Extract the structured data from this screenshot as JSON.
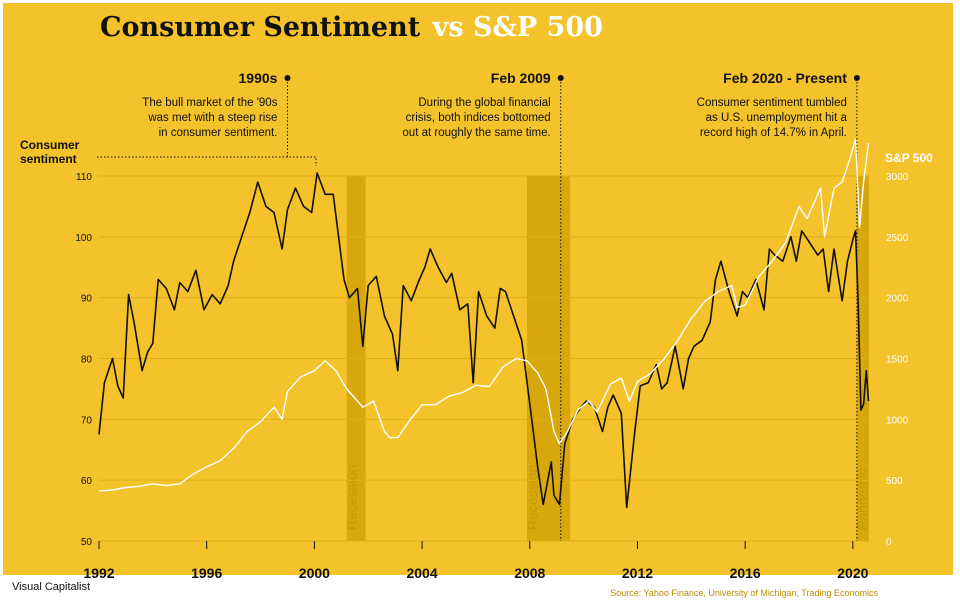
{
  "title": {
    "main": "Consumer Sentiment",
    "accent": "vs S&P 500"
  },
  "credit": "Visual Capitalist",
  "chart_data": {
    "type": "line",
    "colors": {
      "background": "#f4c22b",
      "sentiment": "#111111",
      "sp500": "#ffffff",
      "band": "#d8a70c",
      "band_text": "#c49c00"
    },
    "x_axis": {
      "min": 1992,
      "max": 2020.6,
      "ticks": [
        1992,
        1996,
        2000,
        2004,
        2008,
        2012,
        2016,
        2020
      ]
    },
    "y_left": {
      "label": "Consumer sentiment",
      "min": 50,
      "max": 110,
      "ticks": [
        50,
        60,
        70,
        80,
        90,
        100,
        110
      ]
    },
    "y_right": {
      "label": "S&P 500",
      "min": 0,
      "max": 3000,
      "ticks": [
        0,
        500,
        1000,
        1500,
        2000,
        2500,
        3000
      ]
    },
    "bands": [
      {
        "label": "Recession",
        "start": 2001.2,
        "end": 2001.9
      },
      {
        "label": "Recession",
        "start": 2007.9,
        "end": 2009.5
      },
      {
        "label": "Pandemic",
        "start": 2020.15,
        "end": 2020.5
      }
    ],
    "annotations": [
      {
        "heading": "1990s",
        "lines": [
          "The bull market of the '90s",
          "was met with a steep rise",
          "in consumer sentiment."
        ],
        "marker_x": 1999.0
      },
      {
        "heading": "Feb 2009",
        "lines": [
          "During the global financial",
          "crisis, both indices bottomed",
          "out at roughly the same time."
        ],
        "marker_x": 2009.15
      },
      {
        "heading": "Feb 2020 - Present",
        "lines": [
          "Consumer sentiment tumbled",
          "as U.S. unemployment hit a",
          "record high of 14.7% in April."
        ],
        "marker_x": 2020.15
      }
    ],
    "series": [
      {
        "name": "Consumer sentiment",
        "axis": "left",
        "points": [
          [
            1992.0,
            67.5
          ],
          [
            1992.2,
            76.0
          ],
          [
            1992.5,
            80.0
          ],
          [
            1992.7,
            75.5
          ],
          [
            1992.9,
            73.5
          ],
          [
            1993.1,
            90.5
          ],
          [
            1993.3,
            86.0
          ],
          [
            1993.6,
            78.0
          ],
          [
            1993.8,
            81.0
          ],
          [
            1994.0,
            82.5
          ],
          [
            1994.2,
            93.0
          ],
          [
            1994.5,
            91.5
          ],
          [
            1994.8,
            88.0
          ],
          [
            1995.0,
            92.5
          ],
          [
            1995.3,
            91.0
          ],
          [
            1995.6,
            94.5
          ],
          [
            1995.9,
            88.0
          ],
          [
            1996.2,
            90.5
          ],
          [
            1996.5,
            89.0
          ],
          [
            1996.8,
            92.0
          ],
          [
            1997.0,
            96.0
          ],
          [
            1997.3,
            100.0
          ],
          [
            1997.6,
            104.0
          ],
          [
            1997.9,
            109.0
          ],
          [
            1998.2,
            105.0
          ],
          [
            1998.5,
            104.0
          ],
          [
            1998.8,
            98.0
          ],
          [
            1999.0,
            104.5
          ],
          [
            1999.3,
            108.0
          ],
          [
            1999.6,
            105.0
          ],
          [
            1999.9,
            104.0
          ],
          [
            2000.1,
            110.5
          ],
          [
            2000.4,
            107.0
          ],
          [
            2000.7,
            107.0
          ],
          [
            2000.9,
            100.0
          ],
          [
            2001.1,
            93.0
          ],
          [
            2001.3,
            90.0
          ],
          [
            2001.6,
            91.5
          ],
          [
            2001.8,
            82.0
          ],
          [
            2002.0,
            92.0
          ],
          [
            2002.3,
            93.5
          ],
          [
            2002.6,
            87.0
          ],
          [
            2002.9,
            84.0
          ],
          [
            2003.1,
            78.0
          ],
          [
            2003.3,
            92.0
          ],
          [
            2003.6,
            89.5
          ],
          [
            2003.9,
            93.0
          ],
          [
            2004.1,
            95.0
          ],
          [
            2004.3,
            98.0
          ],
          [
            2004.6,
            95.0
          ],
          [
            2004.9,
            92.5
          ],
          [
            2005.1,
            94.0
          ],
          [
            2005.4,
            88.0
          ],
          [
            2005.7,
            89.0
          ],
          [
            2005.9,
            76.0
          ],
          [
            2006.1,
            91.0
          ],
          [
            2006.4,
            87.0
          ],
          [
            2006.7,
            85.0
          ],
          [
            2006.9,
            91.5
          ],
          [
            2007.1,
            91.0
          ],
          [
            2007.4,
            87.0
          ],
          [
            2007.7,
            83.0
          ],
          [
            2007.9,
            76.0
          ],
          [
            2008.1,
            69.0
          ],
          [
            2008.3,
            62.0
          ],
          [
            2008.5,
            56.0
          ],
          [
            2008.8,
            63.0
          ],
          [
            2008.9,
            57.5
          ],
          [
            2009.1,
            56.0
          ],
          [
            2009.3,
            66.0
          ],
          [
            2009.6,
            70.0
          ],
          [
            2009.9,
            72.0
          ],
          [
            2010.1,
            73.0
          ],
          [
            2010.4,
            72.0
          ],
          [
            2010.7,
            68.0
          ],
          [
            2010.9,
            72.0
          ],
          [
            2011.1,
            74.0
          ],
          [
            2011.4,
            71.0
          ],
          [
            2011.6,
            55.5
          ],
          [
            2011.9,
            68.0
          ],
          [
            2012.1,
            75.5
          ],
          [
            2012.4,
            76.0
          ],
          [
            2012.7,
            79.0
          ],
          [
            2012.9,
            75.0
          ],
          [
            2013.1,
            76.0
          ],
          [
            2013.4,
            82.0
          ],
          [
            2013.7,
            75.0
          ],
          [
            2013.9,
            80.0
          ],
          [
            2014.1,
            82.0
          ],
          [
            2014.4,
            83.0
          ],
          [
            2014.7,
            86.0
          ],
          [
            2014.9,
            93.0
          ],
          [
            2015.1,
            96.0
          ],
          [
            2015.4,
            91.0
          ],
          [
            2015.7,
            87.0
          ],
          [
            2015.9,
            91.0
          ],
          [
            2016.1,
            90.0
          ],
          [
            2016.4,
            93.0
          ],
          [
            2016.7,
            88.0
          ],
          [
            2016.9,
            98.0
          ],
          [
            2017.1,
            97.0
          ],
          [
            2017.4,
            96.0
          ],
          [
            2017.7,
            100.0
          ],
          [
            2017.9,
            96.0
          ],
          [
            2018.1,
            101.0
          ],
          [
            2018.4,
            99.0
          ],
          [
            2018.7,
            97.0
          ],
          [
            2018.9,
            98.0
          ],
          [
            2019.1,
            91.0
          ],
          [
            2019.3,
            98.0
          ],
          [
            2019.6,
            89.5
          ],
          [
            2019.8,
            96.0
          ],
          [
            2020.0,
            99.5
          ],
          [
            2020.1,
            101.0
          ],
          [
            2020.2,
            89.0
          ],
          [
            2020.3,
            71.5
          ],
          [
            2020.4,
            72.5
          ],
          [
            2020.5,
            78.0
          ],
          [
            2020.58,
            73.0
          ]
        ]
      },
      {
        "name": "S&P 500",
        "axis": "right",
        "points": [
          [
            1992.0,
            410
          ],
          [
            1992.5,
            420
          ],
          [
            1993.0,
            440
          ],
          [
            1993.5,
            450
          ],
          [
            1994.0,
            470
          ],
          [
            1994.5,
            455
          ],
          [
            1995.0,
            470
          ],
          [
            1995.5,
            550
          ],
          [
            1996.0,
            610
          ],
          [
            1996.5,
            660
          ],
          [
            1997.0,
            760
          ],
          [
            1997.5,
            900
          ],
          [
            1998.0,
            980
          ],
          [
            1998.5,
            1100
          ],
          [
            1998.8,
            1000
          ],
          [
            1999.0,
            1230
          ],
          [
            1999.5,
            1350
          ],
          [
            2000.0,
            1400
          ],
          [
            2000.4,
            1480
          ],
          [
            2000.8,
            1400
          ],
          [
            2001.2,
            1250
          ],
          [
            2001.6,
            1150
          ],
          [
            2001.8,
            1100
          ],
          [
            2002.2,
            1150
          ],
          [
            2002.6,
            900
          ],
          [
            2002.8,
            850
          ],
          [
            2003.1,
            850
          ],
          [
            2003.5,
            980
          ],
          [
            2004.0,
            1120
          ],
          [
            2004.5,
            1120
          ],
          [
            2005.0,
            1190
          ],
          [
            2005.5,
            1220
          ],
          [
            2006.0,
            1280
          ],
          [
            2006.5,
            1270
          ],
          [
            2007.0,
            1430
          ],
          [
            2007.5,
            1500
          ],
          [
            2007.9,
            1480
          ],
          [
            2008.3,
            1380
          ],
          [
            2008.6,
            1250
          ],
          [
            2008.9,
            900
          ],
          [
            2009.1,
            800
          ],
          [
            2009.4,
            900
          ],
          [
            2009.8,
            1080
          ],
          [
            2010.2,
            1150
          ],
          [
            2010.5,
            1060
          ],
          [
            2011.0,
            1290
          ],
          [
            2011.4,
            1340
          ],
          [
            2011.7,
            1150
          ],
          [
            2012.0,
            1310
          ],
          [
            2012.5,
            1380
          ],
          [
            2013.0,
            1500
          ],
          [
            2013.5,
            1650
          ],
          [
            2014.0,
            1830
          ],
          [
            2014.5,
            1970
          ],
          [
            2015.0,
            2050
          ],
          [
            2015.5,
            2100
          ],
          [
            2015.7,
            1920
          ],
          [
            2016.0,
            1940
          ],
          [
            2016.5,
            2170
          ],
          [
            2017.0,
            2300
          ],
          [
            2017.5,
            2450
          ],
          [
            2018.0,
            2750
          ],
          [
            2018.3,
            2650
          ],
          [
            2018.8,
            2900
          ],
          [
            2018.95,
            2500
          ],
          [
            2019.3,
            2900
          ],
          [
            2019.6,
            2950
          ],
          [
            2019.9,
            3150
          ],
          [
            2020.1,
            3300
          ],
          [
            2020.25,
            2580
          ],
          [
            2020.4,
            2950
          ],
          [
            2020.58,
            3270
          ]
        ]
      }
    ],
    "source": "Source: Yahoo Finance, University of Michigan, Trading Economics"
  }
}
